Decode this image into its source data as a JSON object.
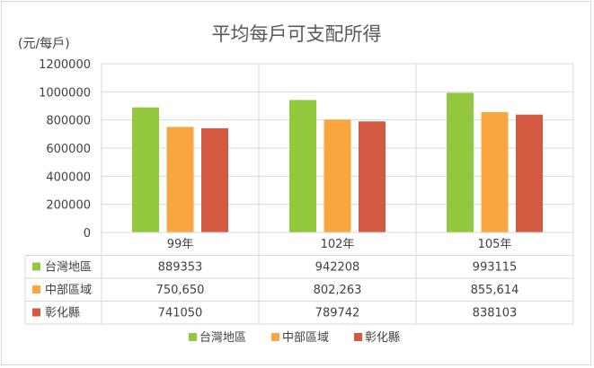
{
  "chart_data": {
    "type": "bar",
    "title": "平均每戶可支配所得",
    "ylabel": "(元/每戶)",
    "categories": [
      "99年",
      "102年",
      "105年"
    ],
    "ylim": [
      0,
      1200000
    ],
    "yticks": [
      "0",
      "200000",
      "400000",
      "600000",
      "800000",
      "1000000",
      "1200000"
    ],
    "grid": true,
    "legend_position": "bottom",
    "series": [
      {
        "name": "台灣地區",
        "color": "#92c83e",
        "values": [
          889353,
          942208,
          993115
        ],
        "labels": [
          "889353",
          "942208",
          "993115"
        ]
      },
      {
        "name": "中部區域",
        "color": "#f9a63f",
        "values": [
          750650,
          802263,
          855614
        ],
        "labels": [
          "750,650",
          "802,263",
          "855,614"
        ]
      },
      {
        "name": "彰化縣",
        "color": "#d35a40",
        "values": [
          741050,
          789742,
          838103
        ],
        "labels": [
          "741050",
          "789742",
          "838103"
        ]
      }
    ]
  }
}
